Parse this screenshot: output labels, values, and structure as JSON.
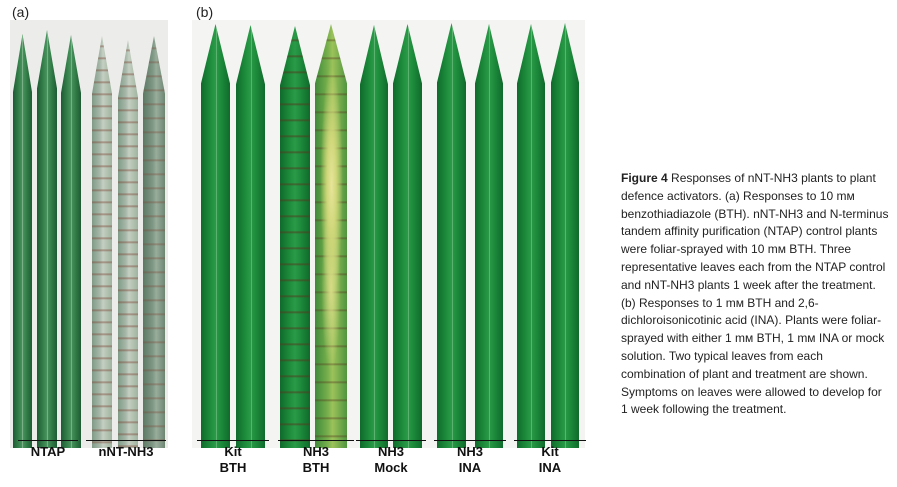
{
  "panel_a": {
    "label": "(a)",
    "groups": [
      {
        "label": "NTAP"
      },
      {
        "label": "nNT-NH3"
      }
    ]
  },
  "panel_b": {
    "label": "(b)",
    "groups": [
      {
        "label": "Kit\nBTH"
      },
      {
        "label": "NH3\nBTH"
      },
      {
        "label": "NH3\nMock"
      },
      {
        "label": "NH3\nINA"
      },
      {
        "label": "Kit\nINA"
      }
    ]
  },
  "caption": {
    "title": "Figure 4",
    "text": " Responses of nNT-NH3 plants to plant defence activators. (a) Responses to 10 mм benzothiadiazole (BTH). nNT-NH3 and N-terminus tandem affinity purification (NTAP) control plants were foliar-sprayed with 10 mм BTH. Three representative leaves each from the NTAP control and nNT-NH3 plants 1 week after the treatment. (b) Responses to 1 mм BTH and 2,6-dichloroisonicotinic acid (INA). Plants were foliar-sprayed with either 1 mм BTH, 1 mм INA or mock solution. Two typical leaves from each combination of plant and treatment are shown. Symptoms on leaves were allowed to develop for 1 week following the treatment."
  },
  "colors": {
    "healthy_leaf": "#1c8a3a",
    "ntap_leaf": "#2f7a45",
    "necrotic_leaf": "#a8b9aa",
    "chlorotic_patch": "#e8e59a"
  }
}
